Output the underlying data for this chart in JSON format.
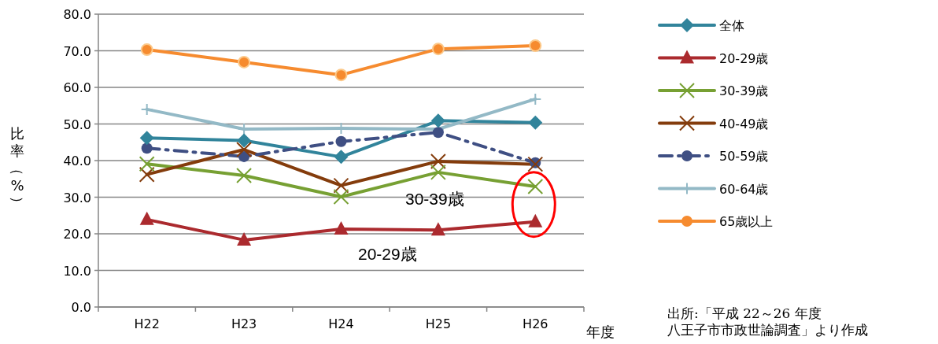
{
  "chart_data": {
    "type": "line",
    "ylabel": "比率（%）",
    "xlabel": "年度",
    "categories": [
      "H22",
      "H23",
      "H24",
      "H25",
      "H26"
    ],
    "ylim": [
      0,
      80
    ],
    "yticks": [
      {
        "value": 0,
        "label": "0.0"
      },
      {
        "value": 10,
        "label": "10.0"
      },
      {
        "value": 20,
        "label": "20.0"
      },
      {
        "value": 30,
        "label": "30.0"
      },
      {
        "value": 40,
        "label": "40.0"
      },
      {
        "value": 50,
        "label": "50.0"
      },
      {
        "value": 60,
        "label": "60.0"
      },
      {
        "value": 70,
        "label": "70.0"
      },
      {
        "value": 80,
        "label": "80.0"
      }
    ],
    "grid": "y",
    "legend": "right",
    "series": [
      {
        "name": "全体",
        "color": "#31849b",
        "marker": "diamond",
        "values": [
          46.2,
          45.5,
          41.0,
          50.9,
          50.4
        ]
      },
      {
        "name": "20-29歳",
        "color": "#ab2a2e",
        "marker": "triangle",
        "values": [
          23.9,
          18.3,
          21.3,
          21.0,
          23.3
        ]
      },
      {
        "name": "30-39歳",
        "color": "#77a033",
        "marker": "cross",
        "values": [
          39.1,
          35.9,
          30.1,
          36.8,
          32.9
        ]
      },
      {
        "name": "40-49歳",
        "color": "#843c0c",
        "marker": "cross",
        "values": [
          36.2,
          43.0,
          33.2,
          39.8,
          39.0
        ]
      },
      {
        "name": "50-59歳",
        "color": "#3f4f83",
        "marker": "circle",
        "line_style": "dashdot",
        "values": [
          43.4,
          41.1,
          45.2,
          47.7,
          39.4
        ]
      },
      {
        "name": "60-64歳",
        "color": "#93b9c6",
        "marker": "plus",
        "values": [
          54.0,
          48.6,
          48.8,
          48.6,
          56.8
        ]
      },
      {
        "name": "65歳以上",
        "color": "#f68b2f",
        "marker": "circle",
        "values": [
          70.3,
          66.9,
          63.4,
          70.5,
          71.4
        ]
      }
    ],
    "annotations": [
      "30-39歳",
      "20-29歳",
      "出所:「平成 22～26 年度",
      "八王子市市政世論調査」より作成"
    ]
  }
}
